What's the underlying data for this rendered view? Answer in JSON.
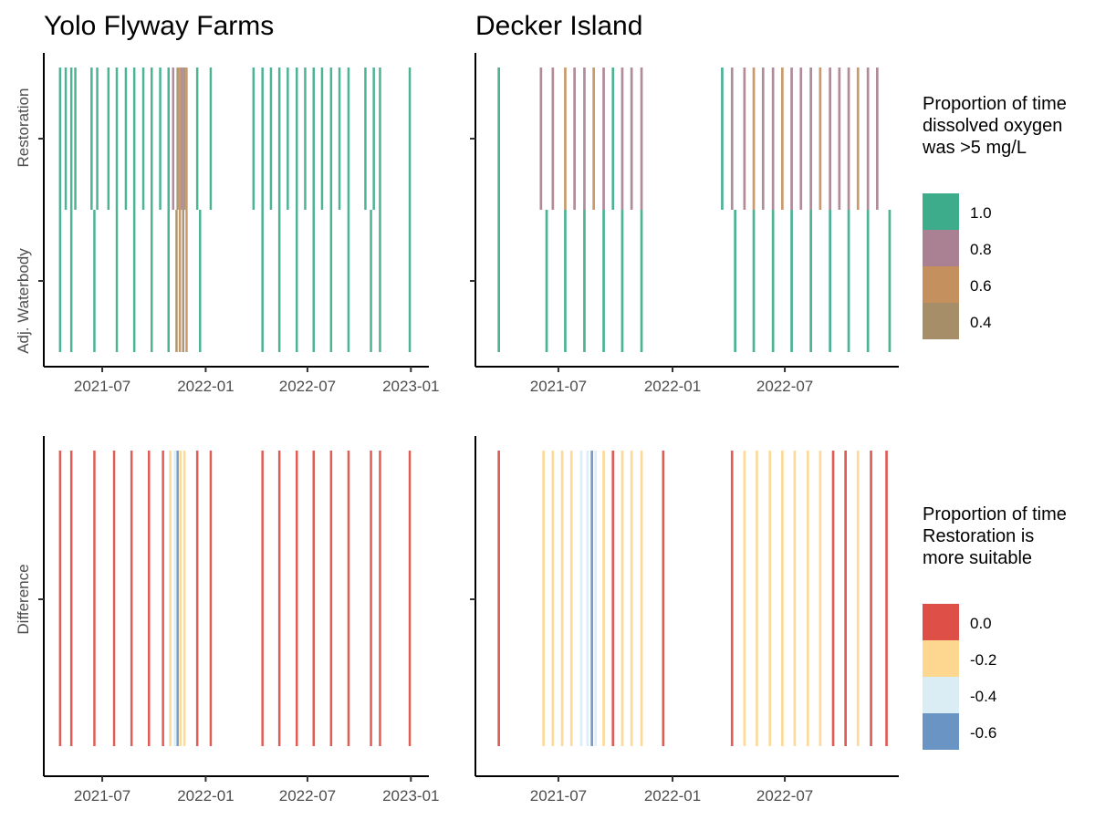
{
  "chart_data": [
    {
      "type": "heatmap",
      "title": "Yolo Flyway Farms",
      "x_ticks": [
        "2021-07",
        "2022-01",
        "2022-07",
        "2023-01"
      ],
      "y_categories": [
        "Restoration",
        "Adj. Waterbody"
      ],
      "xlim": [
        "2021-04-01",
        "2023-01-20"
      ],
      "legend": "top-right",
      "series": [
        {
          "name": "Restoration",
          "points": [
            {
              "x": "2021-04-15",
              "value": 1.0
            },
            {
              "x": "2021-04-25",
              "value": 1.0
            },
            {
              "x": "2021-05-05",
              "value": 1.0
            },
            {
              "x": "2021-05-12",
              "value": 1.0
            },
            {
              "x": "2021-06-10",
              "value": 1.0
            },
            {
              "x": "2021-06-20",
              "value": 1.0
            },
            {
              "x": "2021-07-10",
              "value": 1.0
            },
            {
              "x": "2021-07-25",
              "value": 1.0
            },
            {
              "x": "2021-08-10",
              "value": 1.0
            },
            {
              "x": "2021-08-25",
              "value": 1.0
            },
            {
              "x": "2021-09-10",
              "value": 1.0
            },
            {
              "x": "2021-09-25",
              "value": 1.0
            },
            {
              "x": "2021-10-10",
              "value": 1.0
            },
            {
              "x": "2021-10-25",
              "value": 1.0
            },
            {
              "x": "2021-11-02",
              "value": 0.8
            },
            {
              "x": "2021-11-10",
              "value": 0.4
            },
            {
              "x": "2021-11-14",
              "value": 0.6
            },
            {
              "x": "2021-11-18",
              "value": 0.8
            },
            {
              "x": "2021-11-22",
              "value": 0.4
            },
            {
              "x": "2021-11-26",
              "value": 0.6
            },
            {
              "x": "2021-12-15",
              "value": 1.0
            },
            {
              "x": "2022-01-08",
              "value": 1.0
            },
            {
              "x": "2022-03-25",
              "value": 1.0
            },
            {
              "x": "2022-04-10",
              "value": 1.0
            },
            {
              "x": "2022-04-25",
              "value": 1.0
            },
            {
              "x": "2022-05-10",
              "value": 1.0
            },
            {
              "x": "2022-05-25",
              "value": 1.0
            },
            {
              "x": "2022-06-10",
              "value": 1.0
            },
            {
              "x": "2022-06-25",
              "value": 1.0
            },
            {
              "x": "2022-07-10",
              "value": 1.0
            },
            {
              "x": "2022-07-25",
              "value": 1.0
            },
            {
              "x": "2022-08-10",
              "value": 1.0
            },
            {
              "x": "2022-08-25",
              "value": 1.0
            },
            {
              "x": "2022-09-10",
              "value": 1.0
            },
            {
              "x": "2022-10-10",
              "value": 1.0
            },
            {
              "x": "2022-10-25",
              "value": 1.0
            },
            {
              "x": "2022-11-05",
              "value": 1.0
            },
            {
              "x": "2022-12-28",
              "value": 1.0
            }
          ]
        },
        {
          "name": "Adj. Waterbody",
          "points": [
            {
              "x": "2021-04-15",
              "value": 1.0
            },
            {
              "x": "2021-05-05",
              "value": 1.0
            },
            {
              "x": "2021-06-15",
              "value": 1.0
            },
            {
              "x": "2021-07-25",
              "value": 1.0
            },
            {
              "x": "2021-08-25",
              "value": 1.0
            },
            {
              "x": "2021-09-25",
              "value": 1.0
            },
            {
              "x": "2021-10-25",
              "value": 1.0
            },
            {
              "x": "2021-11-08",
              "value": 0.4
            },
            {
              "x": "2021-11-14",
              "value": 0.6
            },
            {
              "x": "2021-11-20",
              "value": 0.4
            },
            {
              "x": "2021-11-26",
              "value": 0.6
            },
            {
              "x": "2021-12-20",
              "value": 1.0
            },
            {
              "x": "2022-04-10",
              "value": 1.0
            },
            {
              "x": "2022-05-10",
              "value": 1.0
            },
            {
              "x": "2022-06-10",
              "value": 1.0
            },
            {
              "x": "2022-07-10",
              "value": 1.0
            },
            {
              "x": "2022-08-10",
              "value": 1.0
            },
            {
              "x": "2022-09-10",
              "value": 1.0
            },
            {
              "x": "2022-10-20",
              "value": 1.0
            },
            {
              "x": "2022-11-05",
              "value": 1.0
            },
            {
              "x": "2022-12-28",
              "value": 1.0
            }
          ]
        }
      ]
    },
    {
      "type": "heatmap",
      "title": "Decker Island",
      "x_ticks": [
        "2021-07",
        "2022-01",
        "2022-07"
      ],
      "y_categories": [
        "Restoration",
        "Adj. Waterbody"
      ],
      "xlim": [
        "2021-03-01",
        "2022-12-20"
      ],
      "legend": "top-right",
      "series": [
        {
          "name": "Restoration",
          "points": [
            {
              "x": "2021-03-25",
              "value": 1.0
            },
            {
              "x": "2021-06-01",
              "value": 0.8
            },
            {
              "x": "2021-06-20",
              "value": 0.8
            },
            {
              "x": "2021-07-10",
              "value": 0.6
            },
            {
              "x": "2021-07-25",
              "value": 0.8
            },
            {
              "x": "2021-08-10",
              "value": 0.8
            },
            {
              "x": "2021-08-25",
              "value": 0.6
            },
            {
              "x": "2021-09-10",
              "value": 0.8
            },
            {
              "x": "2021-09-25",
              "value": 1.0
            },
            {
              "x": "2021-10-10",
              "value": 0.8
            },
            {
              "x": "2021-10-25",
              "value": 0.8
            },
            {
              "x": "2021-11-10",
              "value": 0.8
            },
            {
              "x": "2022-03-20",
              "value": 1.0
            },
            {
              "x": "2022-04-05",
              "value": 0.8
            },
            {
              "x": "2022-04-25",
              "value": 0.8
            },
            {
              "x": "2022-05-10",
              "value": 0.6
            },
            {
              "x": "2022-05-25",
              "value": 0.8
            },
            {
              "x": "2022-06-10",
              "value": 0.8
            },
            {
              "x": "2022-06-25",
              "value": 0.6
            },
            {
              "x": "2022-07-10",
              "value": 0.8
            },
            {
              "x": "2022-07-25",
              "value": 0.8
            },
            {
              "x": "2022-08-10",
              "value": 0.8
            },
            {
              "x": "2022-08-25",
              "value": 0.6
            },
            {
              "x": "2022-09-10",
              "value": 0.8
            },
            {
              "x": "2022-09-25",
              "value": 0.8
            },
            {
              "x": "2022-10-10",
              "value": 0.8
            },
            {
              "x": "2022-10-25",
              "value": 0.6
            },
            {
              "x": "2022-11-10",
              "value": 0.8
            },
            {
              "x": "2022-11-25",
              "value": 0.8
            }
          ]
        },
        {
          "name": "Adj. Waterbody",
          "points": [
            {
              "x": "2021-03-25",
              "value": 1.0
            },
            {
              "x": "2021-06-10",
              "value": 1.0
            },
            {
              "x": "2021-07-10",
              "value": 1.0
            },
            {
              "x": "2021-08-10",
              "value": 1.0
            },
            {
              "x": "2021-09-10",
              "value": 1.0
            },
            {
              "x": "2021-10-10",
              "value": 1.0
            },
            {
              "x": "2021-11-10",
              "value": 1.0
            },
            {
              "x": "2022-04-10",
              "value": 1.0
            },
            {
              "x": "2022-05-10",
              "value": 1.0
            },
            {
              "x": "2022-06-10",
              "value": 1.0
            },
            {
              "x": "2022-07-10",
              "value": 1.0
            },
            {
              "x": "2022-08-10",
              "value": 1.0
            },
            {
              "x": "2022-09-10",
              "value": 1.0
            },
            {
              "x": "2022-10-10",
              "value": 1.0
            },
            {
              "x": "2022-11-10",
              "value": 1.0
            },
            {
              "x": "2022-12-15",
              "value": 1.0
            }
          ]
        }
      ]
    },
    {
      "type": "heatmap",
      "title": "",
      "x_ticks": [
        "2021-07",
        "2022-01",
        "2022-07",
        "2023-01"
      ],
      "y_categories": [
        "Difference"
      ],
      "xlim": [
        "2021-04-01",
        "2023-01-20"
      ],
      "legend": "bottom-right",
      "series": [
        {
          "name": "Difference",
          "points": [
            {
              "x": "2021-04-15",
              "value": 0.0
            },
            {
              "x": "2021-05-05",
              "value": 0.0
            },
            {
              "x": "2021-06-15",
              "value": 0.0
            },
            {
              "x": "2021-07-20",
              "value": 0.0
            },
            {
              "x": "2021-08-20",
              "value": 0.0
            },
            {
              "x": "2021-09-20",
              "value": 0.0
            },
            {
              "x": "2021-10-15",
              "value": 0.0
            },
            {
              "x": "2021-10-28",
              "value": -0.2
            },
            {
              "x": "2021-11-05",
              "value": -0.4
            },
            {
              "x": "2021-11-10",
              "value": -0.6
            },
            {
              "x": "2021-11-15",
              "value": -0.2
            },
            {
              "x": "2021-11-22",
              "value": -0.2
            },
            {
              "x": "2021-12-15",
              "value": 0.0
            },
            {
              "x": "2022-01-08",
              "value": 0.0
            },
            {
              "x": "2022-04-10",
              "value": 0.0
            },
            {
              "x": "2022-05-10",
              "value": 0.0
            },
            {
              "x": "2022-06-10",
              "value": 0.0
            },
            {
              "x": "2022-07-10",
              "value": 0.0
            },
            {
              "x": "2022-08-10",
              "value": 0.0
            },
            {
              "x": "2022-09-10",
              "value": 0.0
            },
            {
              "x": "2022-10-20",
              "value": 0.0
            },
            {
              "x": "2022-11-05",
              "value": 0.0
            },
            {
              "x": "2022-12-28",
              "value": 0.0
            }
          ]
        }
      ]
    },
    {
      "type": "heatmap",
      "title": "",
      "x_ticks": [
        "2021-07",
        "2022-01",
        "2022-07"
      ],
      "y_categories": [
        "Difference"
      ],
      "xlim": [
        "2021-03-01",
        "2022-12-20"
      ],
      "legend": "bottom-right",
      "series": [
        {
          "name": "Difference",
          "points": [
            {
              "x": "2021-03-25",
              "value": 0.0
            },
            {
              "x": "2021-06-05",
              "value": -0.2
            },
            {
              "x": "2021-06-20",
              "value": -0.2
            },
            {
              "x": "2021-07-05",
              "value": -0.2
            },
            {
              "x": "2021-07-20",
              "value": -0.2
            },
            {
              "x": "2021-08-05",
              "value": -0.4
            },
            {
              "x": "2021-08-15",
              "value": -0.4
            },
            {
              "x": "2021-08-22",
              "value": -0.6
            },
            {
              "x": "2021-08-28",
              "value": -0.4
            },
            {
              "x": "2021-09-10",
              "value": -0.2
            },
            {
              "x": "2021-09-25",
              "value": 0.0
            },
            {
              "x": "2021-10-10",
              "value": -0.2
            },
            {
              "x": "2021-10-25",
              "value": -0.2
            },
            {
              "x": "2021-11-10",
              "value": -0.2
            },
            {
              "x": "2021-12-15",
              "value": 0.0
            },
            {
              "x": "2022-04-05",
              "value": 0.0
            },
            {
              "x": "2022-04-25",
              "value": -0.2
            },
            {
              "x": "2022-05-15",
              "value": -0.2
            },
            {
              "x": "2022-06-05",
              "value": -0.2
            },
            {
              "x": "2022-06-25",
              "value": -0.2
            },
            {
              "x": "2022-07-15",
              "value": -0.2
            },
            {
              "x": "2022-08-05",
              "value": -0.2
            },
            {
              "x": "2022-08-25",
              "value": -0.2
            },
            {
              "x": "2022-09-15",
              "value": 0.0
            },
            {
              "x": "2022-10-05",
              "value": 0.0
            },
            {
              "x": "2022-10-25",
              "value": -0.2
            },
            {
              "x": "2022-11-15",
              "value": 0.0
            },
            {
              "x": "2022-12-10",
              "value": 0.0
            }
          ]
        }
      ]
    }
  ],
  "legends": [
    {
      "title_lines": [
        "Proportion of time",
        "dissolved oxygen",
        "was >5 mg/L"
      ],
      "items": [
        {
          "label": "1.0",
          "color": "#1b9e77"
        },
        {
          "label": "0.8",
          "color": "#9a6b7f"
        },
        {
          "label": "0.6",
          "color": "#b87d42"
        },
        {
          "label": "0.4",
          "color": "#967b4e"
        }
      ]
    },
    {
      "title_lines": [
        "Proportion of time",
        "Restoration is",
        "more suitable"
      ],
      "items": [
        {
          "label": "0.0",
          "color": "#d73027"
        },
        {
          "label": "-0.2",
          "color": "#fdcf7d"
        },
        {
          "label": "-0.4",
          "color": "#d4eaf3"
        },
        {
          "label": "-0.6",
          "color": "#4f81ba"
        }
      ]
    }
  ]
}
